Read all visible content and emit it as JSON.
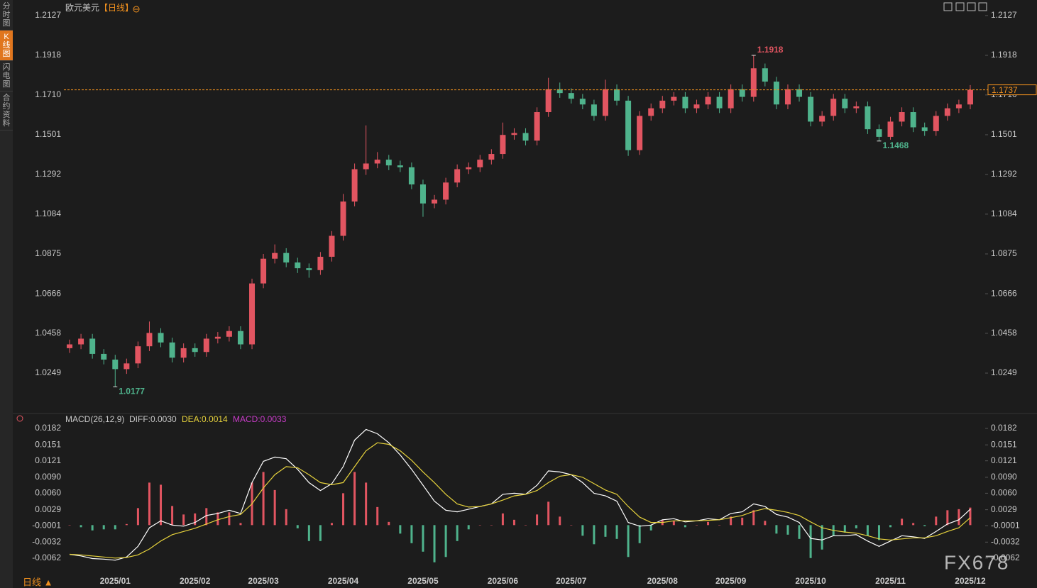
{
  "header": {
    "symbol": "欧元美元",
    "period": "【日线】"
  },
  "sidebar": [
    "分时图",
    "K线图",
    "闪电图",
    "合约资料"
  ],
  "footer": {
    "period": "日线 ▲"
  },
  "watermark": "FX678",
  "chart_data": [
    {
      "type": "candlestick",
      "categories": [
        null,
        null,
        null,
        null,
        "2025/01",
        null,
        null,
        null,
        null,
        null,
        null,
        "2025/02",
        null,
        null,
        null,
        null,
        null,
        "2025/03",
        null,
        null,
        null,
        null,
        null,
        null,
        "2025/04",
        null,
        null,
        null,
        null,
        null,
        null,
        "2025/05",
        null,
        null,
        null,
        null,
        null,
        null,
        "2025/06",
        null,
        null,
        null,
        null,
        null,
        "2025/07",
        null,
        null,
        null,
        null,
        null,
        null,
        null,
        "2025/08",
        null,
        null,
        null,
        null,
        null,
        "2025/09",
        null,
        null,
        null,
        null,
        null,
        null,
        "2025/10",
        null,
        null,
        null,
        null,
        null,
        null,
        "2025/11",
        null,
        null,
        null,
        null,
        null,
        null,
        "2025/12"
      ],
      "open": [
        1.038,
        1.04,
        1.043,
        1.035,
        1.032,
        1.027,
        1.03,
        1.039,
        1.046,
        1.041,
        1.033,
        1.038,
        1.036,
        1.043,
        1.044,
        1.047,
        1.04,
        1.072,
        1.085,
        1.088,
        1.083,
        1.08,
        1.079,
        1.086,
        1.097,
        1.115,
        1.132,
        1.135,
        1.137,
        1.134,
        1.133,
        1.124,
        1.114,
        1.116,
        1.125,
        1.132,
        1.133,
        1.137,
        1.14,
        1.15,
        1.151,
        1.147,
        1.162,
        1.174,
        1.172,
        1.169,
        1.166,
        1.16,
        1.174,
        1.168,
        1.142,
        1.16,
        1.164,
        1.168,
        1.17,
        1.164,
        1.166,
        1.17,
        1.164,
        1.174,
        1.17,
        1.185,
        1.178,
        1.166,
        1.174,
        1.17,
        1.157,
        1.16,
        1.169,
        1.164,
        1.165,
        1.153,
        1.149,
        1.157,
        1.162,
        1.154,
        1.152,
        1.16,
        1.164,
        1.166
      ],
      "high": [
        1.0425,
        1.0455,
        1.0455,
        1.0375,
        1.0345,
        1.0325,
        1.0415,
        1.052,
        1.0485,
        1.0435,
        1.0405,
        1.0405,
        1.0455,
        1.0465,
        1.0495,
        1.0495,
        1.0745,
        1.0875,
        1.0925,
        1.0905,
        1.0855,
        1.0825,
        1.0885,
        1.0995,
        1.119,
        1.135,
        1.155,
        1.141,
        1.1395,
        1.1365,
        1.1355,
        1.1265,
        1.1185,
        1.1275,
        1.1345,
        1.1355,
        1.1395,
        1.1425,
        1.1565,
        1.1535,
        1.1535,
        1.1645,
        1.18,
        1.1775,
        1.1745,
        1.1715,
        1.1685,
        1.179,
        1.1765,
        1.1705,
        1.1625,
        1.1665,
        1.1705,
        1.1725,
        1.1725,
        1.1685,
        1.1725,
        1.1725,
        1.1765,
        1.1765,
        1.1918,
        1.1875,
        1.1805,
        1.1765,
        1.1765,
        1.1725,
        1.1625,
        1.1715,
        1.1715,
        1.1675,
        1.1675,
        1.1555,
        1.1595,
        1.1645,
        1.1645,
        1.1565,
        1.1625,
        1.1665,
        1.1685,
        1.1762
      ],
      "low": [
        1.0355,
        1.0375,
        1.0325,
        1.0295,
        1.0177,
        1.0245,
        1.0275,
        1.0365,
        1.0385,
        1.0305,
        1.0305,
        1.0335,
        1.0335,
        1.0405,
        1.0415,
        1.0375,
        1.0375,
        1.0695,
        1.0825,
        1.0805,
        1.0775,
        1.075,
        1.0765,
        1.0835,
        1.0945,
        1.1125,
        1.129,
        1.1325,
        1.1315,
        1.1305,
        1.1215,
        1.107,
        1.1115,
        1.1135,
        1.1225,
        1.1295,
        1.1305,
        1.1345,
        1.1375,
        1.1475,
        1.1445,
        1.1445,
        1.1595,
        1.1695,
        1.1665,
        1.1635,
        1.1575,
        1.1575,
        1.1655,
        1.139,
        1.1395,
        1.1575,
        1.1615,
        1.1655,
        1.1615,
        1.1615,
        1.1635,
        1.1615,
        1.1615,
        1.1675,
        1.1675,
        1.1755,
        1.1635,
        1.1635,
        1.1675,
        1.1545,
        1.1545,
        1.1575,
        1.1615,
        1.1615,
        1.1505,
        1.1468,
        1.1475,
        1.1545,
        1.1515,
        1.1495,
        1.1495,
        1.1575,
        1.1615,
        1.1635
      ],
      "close": [
        1.04,
        1.043,
        1.035,
        1.032,
        1.027,
        1.03,
        1.039,
        1.046,
        1.041,
        1.033,
        1.038,
        1.036,
        1.043,
        1.044,
        1.047,
        1.04,
        1.072,
        1.085,
        1.088,
        1.083,
        1.08,
        1.079,
        1.086,
        1.097,
        1.115,
        1.132,
        1.135,
        1.137,
        1.134,
        1.133,
        1.124,
        1.114,
        1.116,
        1.125,
        1.132,
        1.133,
        1.137,
        1.14,
        1.15,
        1.151,
        1.147,
        1.162,
        1.174,
        1.172,
        1.169,
        1.166,
        1.16,
        1.174,
        1.168,
        1.142,
        1.16,
        1.164,
        1.168,
        1.17,
        1.164,
        1.166,
        1.17,
        1.164,
        1.174,
        1.17,
        1.185,
        1.178,
        1.166,
        1.174,
        1.17,
        1.157,
        1.16,
        1.169,
        1.164,
        1.165,
        1.153,
        1.149,
        1.157,
        1.162,
        1.154,
        1.152,
        1.16,
        1.164,
        1.166,
        1.1737
      ],
      "up_color": "#e25561",
      "down_color": "#4fb38c",
      "ylim": [
        1.0048,
        1.219
      ],
      "yticks": [
        1.2127,
        1.1918,
        {
          "value": 1.171,
          "label": "1.1710"
        },
        1.1501,
        1.1292,
        1.1084,
        1.0875,
        1.0666,
        1.0458,
        1.0249
      ],
      "last_price": 1.1737,
      "last_color": "#f0901e",
      "annotations": [
        1.1918,
        1.0177,
        1.1468
      ],
      "grid": false
    },
    {
      "type": "macd",
      "legend": [
        "MACD(26,12,9)",
        "DIFF:0.0030",
        "DEA:0.0014",
        "MACD:0.0033"
      ],
      "legend_colors": [
        "#c8c8c8",
        "#c8c8c8",
        "#e6d23c",
        "#c83cc8"
      ],
      "series": [
        {
          "color": "#ffffff",
          "values": [
            -0.0055,
            -0.0058,
            -0.0063,
            -0.0064,
            -0.0066,
            -0.006,
            -0.004,
            -0.0005,
            0.0008,
            0.0,
            -0.0002,
            0.0005,
            0.0018,
            0.0022,
            0.0028,
            0.0022,
            0.008,
            0.012,
            0.0128,
            0.0125,
            0.0105,
            0.008,
            0.0065,
            0.0078,
            0.011,
            0.016,
            0.018,
            0.0172,
            0.0155,
            0.0132,
            0.0105,
            0.0075,
            0.0045,
            0.0028,
            0.0025,
            0.003,
            0.0035,
            0.004,
            0.0058,
            0.006,
            0.0058,
            0.0075,
            0.0102,
            0.01,
            0.0095,
            0.008,
            0.006,
            0.0055,
            0.0045,
            0.0005,
            -0.0002,
            0.0,
            0.001,
            0.0012,
            0.0006,
            0.0008,
            0.0012,
            0.001,
            0.0022,
            0.0025,
            0.004,
            0.0035,
            0.002,
            0.0015,
            0.0005,
            -0.0025,
            -0.0028,
            -0.002,
            -0.002,
            -0.0018,
            -0.003,
            -0.004,
            -0.003,
            -0.002,
            -0.0022,
            -0.0025,
            -0.0012,
            0.0002,
            0.001,
            0.003
          ]
        },
        {
          "color": "#e6d23c",
          "values": [
            -0.0055,
            -0.0056,
            -0.0058,
            -0.006,
            -0.0062,
            -0.0061,
            -0.0056,
            -0.0045,
            -0.003,
            -0.0018,
            -0.0012,
            -0.0006,
            0.0002,
            0.001,
            0.0016,
            0.002,
            0.004,
            0.007,
            0.0095,
            0.011,
            0.0108,
            0.0095,
            0.008,
            0.0076,
            0.008,
            0.011,
            0.014,
            0.0155,
            0.0152,
            0.014,
            0.0122,
            0.01,
            0.008,
            0.0058,
            0.004,
            0.0034,
            0.0035,
            0.004,
            0.0047,
            0.0055,
            0.0058,
            0.0065,
            0.008,
            0.0092,
            0.0095,
            0.009,
            0.0078,
            0.0066,
            0.0058,
            0.0035,
            0.0015,
            0.0005,
            0.0005,
            0.0008,
            0.0008,
            0.0008,
            0.0009,
            0.001,
            0.0014,
            0.0018,
            0.0026,
            0.0031,
            0.0028,
            0.0024,
            0.0018,
            0.0006,
            -0.0005,
            -0.001,
            -0.0013,
            -0.0015,
            -0.002,
            -0.0026,
            -0.0028,
            -0.0026,
            -0.0024,
            -0.0024,
            -0.002,
            -0.0012,
            -0.0005,
            0.0014
          ]
        },
        {
          "up_color": "#e25561",
          "down_color": "#4fb38c",
          "values": [
            0.0,
            -0.0004,
            -0.001,
            -0.0008,
            -0.0008,
            0.0002,
            0.0032,
            0.008,
            0.0076,
            0.0036,
            0.002,
            0.0022,
            0.0032,
            0.0024,
            0.0024,
            0.0004,
            0.008,
            0.01,
            0.0066,
            0.003,
            -0.0006,
            -0.003,
            -0.003,
            0.0004,
            0.006,
            0.01,
            0.008,
            0.0034,
            0.0006,
            -0.0016,
            -0.0034,
            -0.005,
            -0.007,
            -0.006,
            -0.003,
            -0.0008,
            0.0,
            0.0,
            0.0022,
            0.001,
            0.0,
            0.002,
            0.0044,
            0.0016,
            0.0,
            -0.002,
            -0.0036,
            -0.0022,
            -0.0026,
            -0.006,
            -0.0034,
            -0.001,
            0.001,
            0.0008,
            -0.0004,
            0.0,
            0.0006,
            0.0,
            0.0016,
            0.0014,
            0.0028,
            0.0008,
            -0.0016,
            -0.0018,
            -0.0026,
            -0.0062,
            -0.0046,
            -0.002,
            -0.0014,
            -0.0006,
            -0.002,
            -0.0028,
            -0.0004,
            0.0012,
            0.0004,
            -0.0002,
            0.0016,
            0.0028,
            0.003,
            0.0033
          ]
        }
      ],
      "ylim": [
        -0.0093,
        0.019
      ],
      "yticks": [
        0.0182,
        0.0151,
        0.0121,
        {
          "value": 0.009,
          "label": "0.0090"
        },
        {
          "value": 0.006,
          "label": "0.0060"
        },
        0.0029,
        -0.0001,
        -0.0032,
        -0.0062
      ],
      "grid": false
    }
  ]
}
